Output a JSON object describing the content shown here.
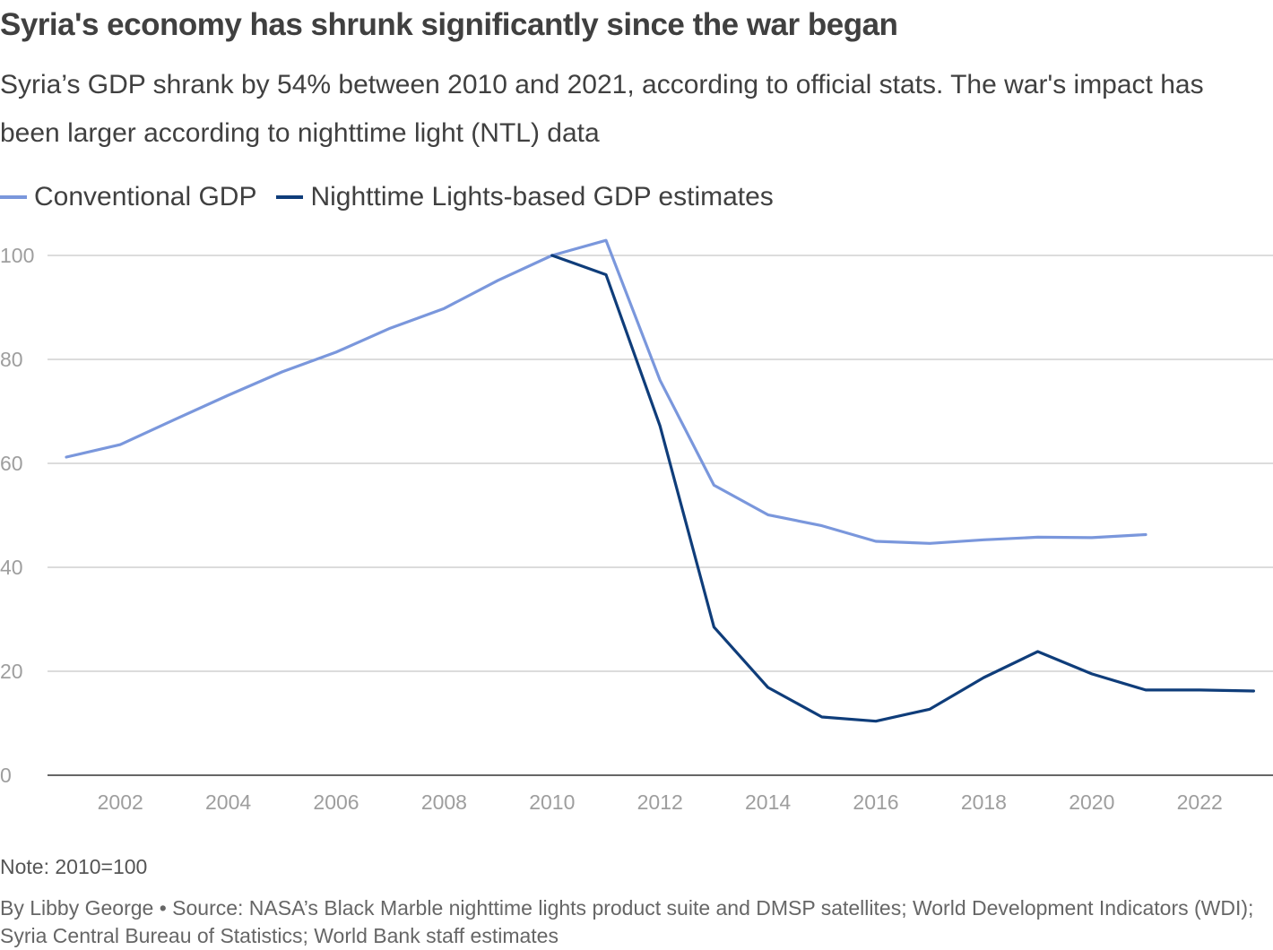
{
  "title": "Syria's economy has shrunk significantly since the war began",
  "subtitle": "Syria’s GDP shrank by 54% between 2010 and 2021, according to official stats. The war's impact has been larger according to nighttime light (NTL) data",
  "note": "Note: 2010=100",
  "source": "By Libby George • Source: NASA’s Black Marble nighttime lights product suite and DMSP satellites; World Development Indicators (WDI); Syria Central Bureau of Statistics; World Bank staff estimates",
  "chart_data": {
    "type": "line",
    "title": "Syria's economy has shrunk significantly since the war began",
    "xlabel": "",
    "ylabel": "",
    "xlim": [
      2001,
      2023
    ],
    "ylim": [
      0,
      100
    ],
    "x_ticks": [
      2002,
      2004,
      2006,
      2008,
      2010,
      2012,
      2014,
      2016,
      2018,
      2020,
      2022
    ],
    "y_ticks": [
      0,
      20,
      40,
      60,
      80,
      100
    ],
    "grid": true,
    "legend_position": "top-left",
    "series": [
      {
        "name": "Conventional GDP",
        "color": "#7a97dc",
        "x": [
          2001,
          2002,
          2003,
          2004,
          2005,
          2006,
          2007,
          2008,
          2009,
          2010,
          2011,
          2012,
          2013,
          2014,
          2015,
          2016,
          2017,
          2018,
          2019,
          2020,
          2021
        ],
        "values": [
          61.2,
          63.6,
          68.4,
          73.1,
          77.6,
          81.4,
          86.0,
          89.8,
          95.2,
          100.0,
          102.9,
          76.0,
          55.8,
          50.1,
          48.0,
          45.0,
          44.6,
          45.3,
          45.8,
          45.7,
          46.3
        ]
      },
      {
        "name": "Nighttime Lights-based GDP estimates",
        "color": "#0f3d7a",
        "x": [
          2010,
          2011,
          2012,
          2013,
          2014,
          2015,
          2016,
          2017,
          2018,
          2019,
          2020,
          2021,
          2022,
          2023
        ],
        "values": [
          100.0,
          96.3,
          67.2,
          28.5,
          16.9,
          11.2,
          10.4,
          12.7,
          18.8,
          23.8,
          19.5,
          16.4,
          16.4,
          16.2
        ]
      }
    ]
  }
}
